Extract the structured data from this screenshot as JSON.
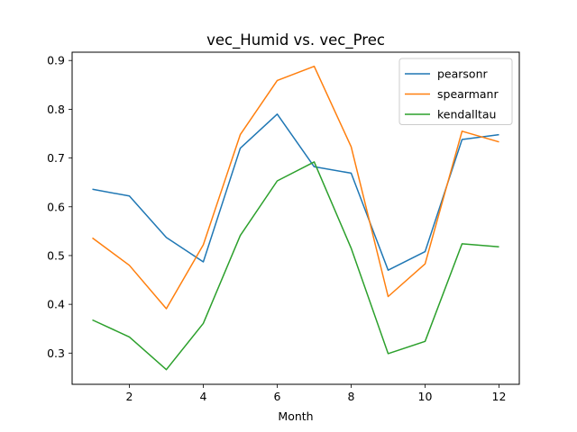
{
  "chart_data": {
    "type": "line",
    "title": "vec_Humid vs. vec_Prec",
    "xlabel": "Month",
    "ylabel": "",
    "xlim": [
      0.45,
      12.55
    ],
    "ylim": [
      0.236,
      0.917
    ],
    "xticks": [
      2,
      4,
      6,
      8,
      10,
      12
    ],
    "yticks": [
      0.3,
      0.4,
      0.5,
      0.6,
      0.7,
      0.8,
      0.9
    ],
    "grid": false,
    "legend_position": "top-right",
    "x": [
      1,
      2,
      3,
      4,
      5,
      6,
      7,
      8,
      9,
      10,
      11,
      12
    ],
    "series": [
      {
        "name": "pearsonr",
        "color": "#1f77b4",
        "values": [
          0.636,
          0.622,
          0.537,
          0.487,
          0.72,
          0.79,
          0.682,
          0.669,
          0.47,
          0.508,
          0.738,
          0.748
        ]
      },
      {
        "name": "spearmanr",
        "color": "#ff7f0e",
        "values": [
          0.536,
          0.48,
          0.391,
          0.522,
          0.748,
          0.859,
          0.888,
          0.723,
          0.416,
          0.483,
          0.755,
          0.733
        ]
      },
      {
        "name": "kendalltau",
        "color": "#2ca02c",
        "values": [
          0.368,
          0.333,
          0.266,
          0.361,
          0.541,
          0.653,
          0.692,
          0.515,
          0.299,
          0.324,
          0.524,
          0.518
        ]
      }
    ]
  }
}
